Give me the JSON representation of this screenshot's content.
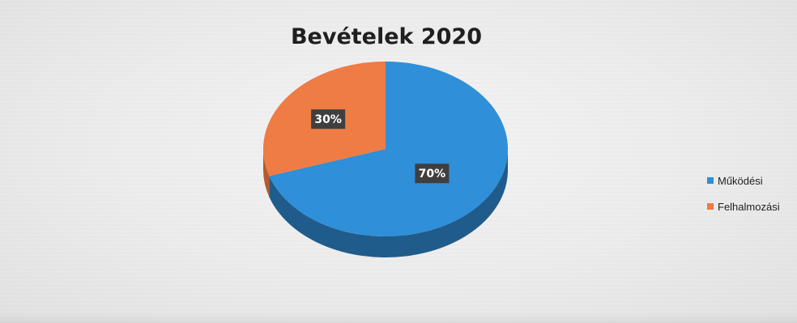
{
  "chart_data": {
    "type": "pie",
    "title": "Bevételek 2020",
    "categories": [
      "Működési",
      "Felhalmozási"
    ],
    "values": [
      70,
      30
    ],
    "data_labels": [
      "70%",
      "30%"
    ],
    "colors": [
      "#2f8fd8",
      "#ef7b45"
    ],
    "shadow_colors": [
      "#1f5c8c",
      "#b35a30"
    ],
    "legend_position": "right",
    "style": "3d-pie"
  }
}
